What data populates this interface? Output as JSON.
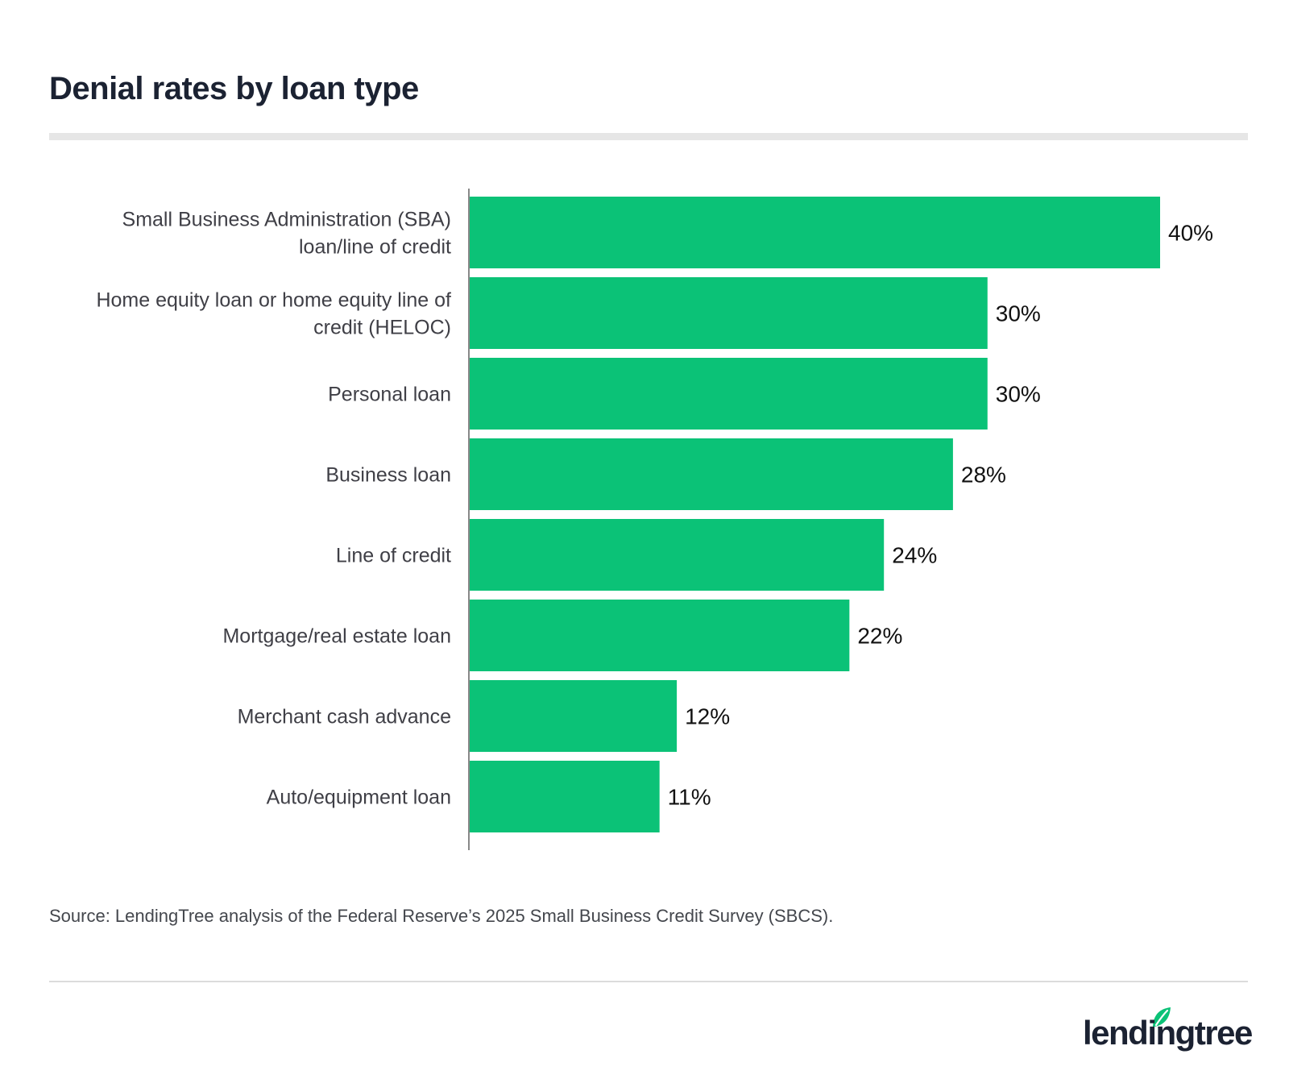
{
  "title": "Denial rates by loan type",
  "source": "Source: LendingTree analysis of the Federal Reserve’s 2025 Small Business Credit Survey (SBCS).",
  "logo": {
    "text": "lendingtree",
    "icon": "leaf-icon"
  },
  "colors": {
    "bar": "#0bc277",
    "axis": "#888888",
    "title": "#1b2232"
  },
  "chart_data": {
    "type": "bar",
    "orientation": "horizontal",
    "title": "Denial rates by loan type",
    "categories": [
      [
        "Small Business Administration (SBA)",
        "loan/line of credit"
      ],
      [
        "Home equity loan or home equity line of",
        "credit (HELOC)"
      ],
      [
        "Personal loan"
      ],
      [
        "Business loan"
      ],
      [
        "Line of credit"
      ],
      [
        "Mortgage/real estate loan"
      ],
      [
        "Merchant cash advance"
      ],
      [
        "Auto/equipment loan"
      ]
    ],
    "values": [
      40,
      30,
      30,
      28,
      24,
      22,
      12,
      11
    ],
    "value_labels": [
      "40%",
      "30%",
      "30%",
      "28%",
      "24%",
      "22%",
      "12%",
      "11%"
    ],
    "unit": "%",
    "xlim": [
      0,
      40
    ],
    "grid": false,
    "legend": "none"
  }
}
